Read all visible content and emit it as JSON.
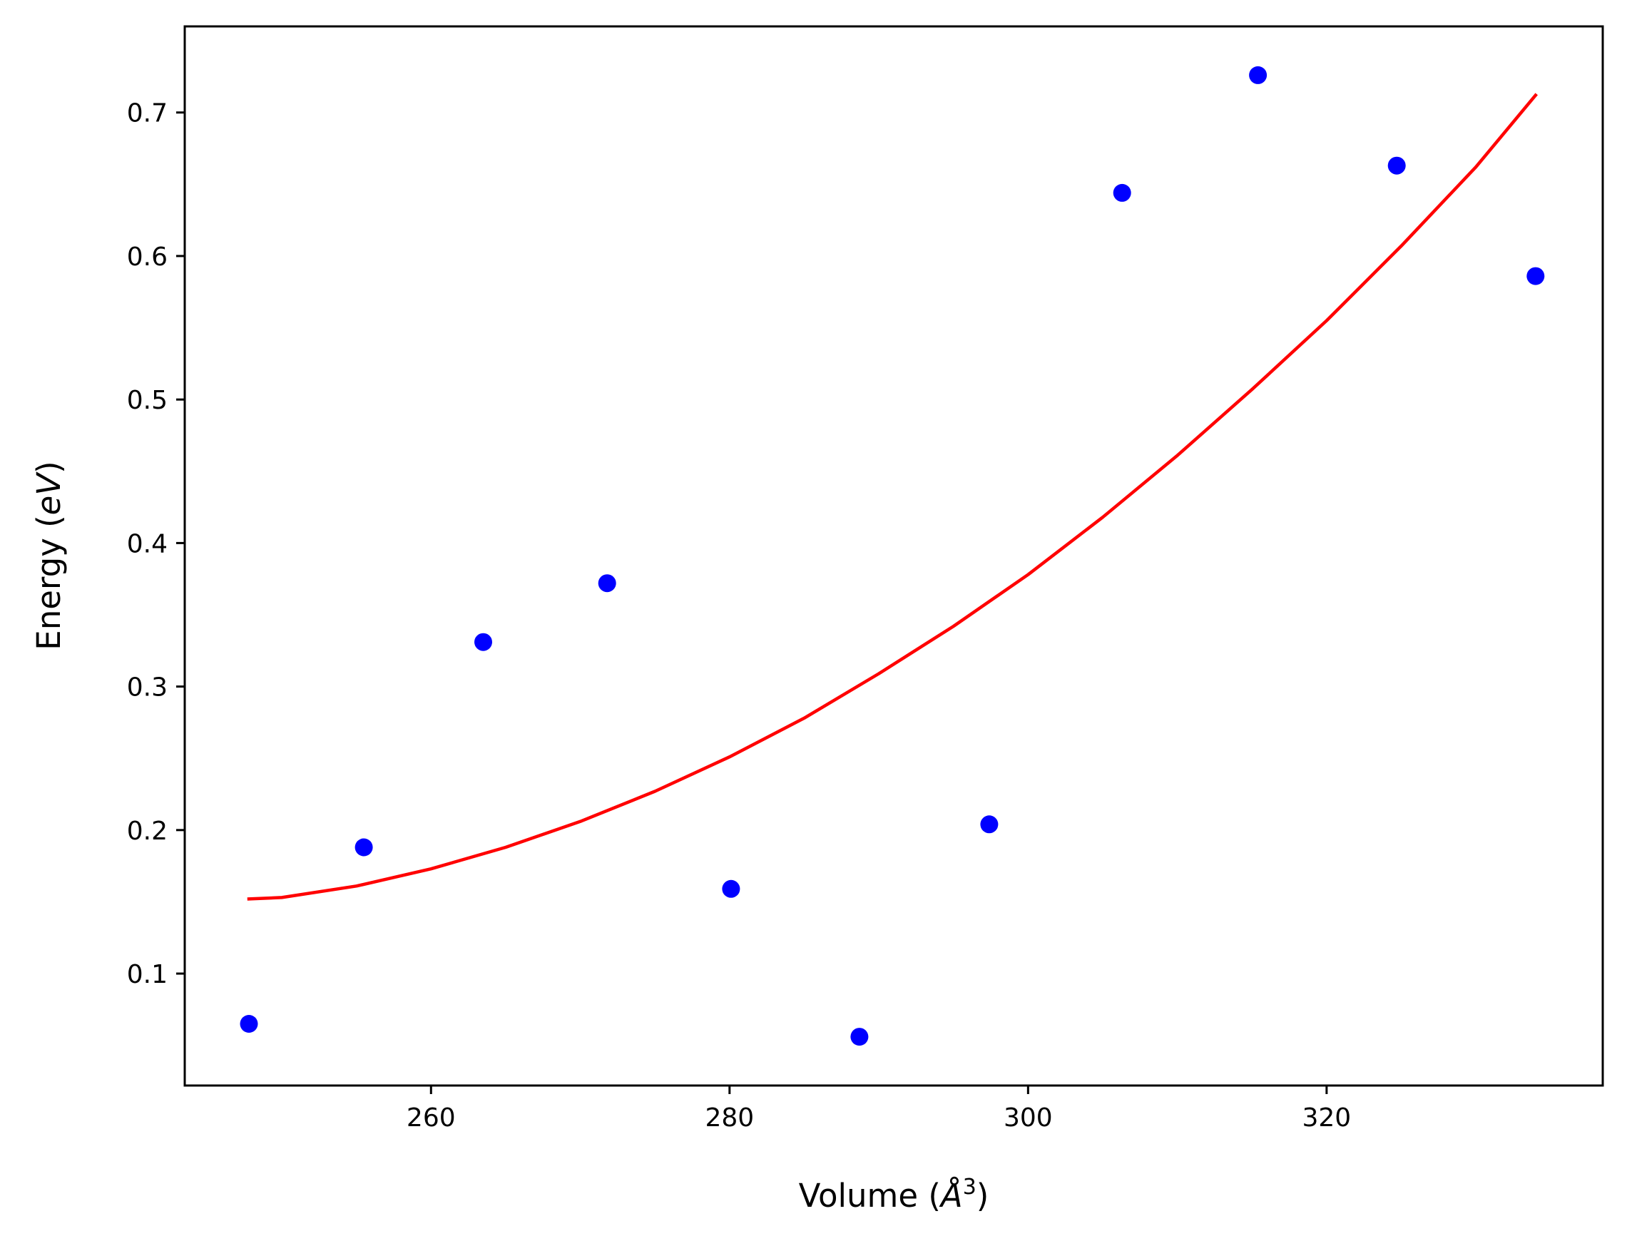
{
  "chart_data": {
    "type": "scatter",
    "title": "",
    "xlabel_prefix": "Volume (",
    "xlabel_symbol": "Å",
    "xlabel_power": "3",
    "xlabel_suffix": ")",
    "ylabel_prefix": "Energy (",
    "ylabel_unit": "eV",
    "ylabel_suffix": ")",
    "xlim": [
      243.5,
      338.5
    ],
    "ylim": [
      0.022,
      0.76
    ],
    "xticks": [
      260,
      280,
      300,
      320
    ],
    "yticks": [
      0.1,
      0.2,
      0.3,
      0.4,
      0.5,
      0.6,
      0.7
    ],
    "grid": false,
    "series": [
      {
        "type": "scatter",
        "color": "#0000ff",
        "marker": "circle",
        "x": [
          247.8,
          255.5,
          263.5,
          271.8,
          280.1,
          288.7,
          297.4,
          306.3,
          315.4,
          324.7,
          334.0
        ],
        "y": [
          0.065,
          0.188,
          0.331,
          0.372,
          0.159,
          0.056,
          0.204,
          0.644,
          0.726,
          0.663,
          0.586
        ]
      },
      {
        "type": "line",
        "color": "#ff0000",
        "x": [
          247.8,
          250,
          255,
          260,
          265,
          270,
          275,
          280,
          285,
          290,
          295,
          300,
          305,
          310,
          315,
          320,
          325,
          330,
          334.0
        ],
        "y": [
          0.152,
          0.153,
          0.161,
          0.173,
          0.188,
          0.206,
          0.227,
          0.251,
          0.278,
          0.309,
          0.342,
          0.378,
          0.418,
          0.461,
          0.507,
          0.555,
          0.607,
          0.662,
          0.712
        ]
      }
    ]
  }
}
